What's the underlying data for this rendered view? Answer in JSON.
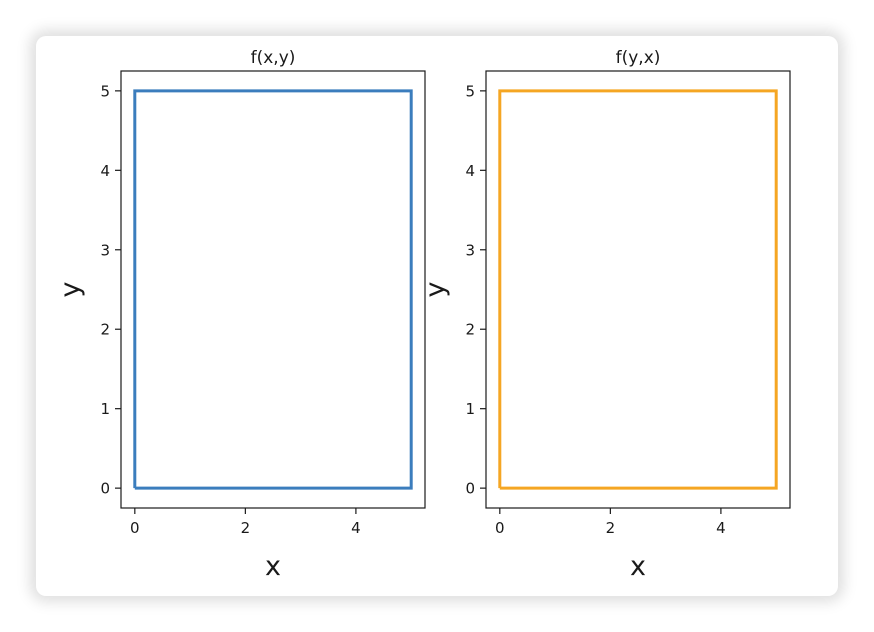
{
  "chart_data": [
    {
      "type": "line",
      "title": "f(x,y)",
      "xlabel": "x",
      "ylabel": "y",
      "xlim": [
        -0.25,
        5.25
      ],
      "ylim": [
        -0.25,
        5.25
      ],
      "xticks": [
        "0",
        "2",
        "4"
      ],
      "xtick_values": [
        0,
        2,
        4
      ],
      "yticks": [
        "0",
        "1",
        "2",
        "3",
        "4",
        "5"
      ],
      "ytick_values": [
        0,
        1,
        2,
        3,
        4,
        5
      ],
      "grid": false,
      "series": [
        {
          "color": "#3b7dbd",
          "x": [
            0,
            5,
            5,
            0,
            0
          ],
          "y": [
            0,
            0,
            5,
            5,
            0
          ]
        }
      ]
    },
    {
      "type": "line",
      "title": "f(y,x)",
      "xlabel": "x",
      "ylabel": "y",
      "xlim": [
        -0.25,
        5.25
      ],
      "ylim": [
        -0.25,
        5.25
      ],
      "xticks": [
        "0",
        "2",
        "4"
      ],
      "xtick_values": [
        0,
        2,
        4
      ],
      "yticks": [
        "0",
        "1",
        "2",
        "3",
        "4",
        "5"
      ],
      "ytick_values": [
        0,
        1,
        2,
        3,
        4,
        5
      ],
      "grid": false,
      "series": [
        {
          "color": "#f5a623",
          "x": [
            0,
            5,
            5,
            0,
            0
          ],
          "y": [
            0,
            0,
            5,
            5,
            0
          ]
        }
      ]
    }
  ]
}
